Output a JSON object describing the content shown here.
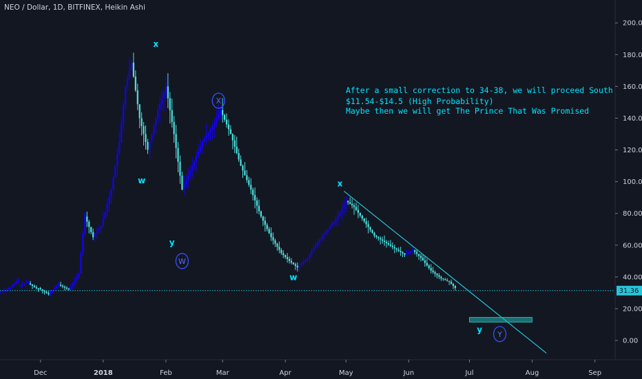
{
  "title": "NEO / Dollar, 1D, BITFINEX, Heikin Ashi",
  "last_price_badge": "31.36",
  "colors": {
    "background": "#131722",
    "bull": "#1400ff",
    "bear": "#4fe3e0",
    "trendline": "#26c6da",
    "text": "#d1d4dc",
    "annotation": "#00e5ff",
    "target_box": "#1fb8b2",
    "badge": "#26c6da"
  },
  "annotation_lines": [
    "After a small correction to 34-38, we will proceed South",
    "$11.54-$14.5 (High Probability)",
    "Maybe then we will get The Prince That Was Promised"
  ],
  "chart_data": {
    "type": "candlestick",
    "title": "NEO / Dollar, 1D, BITFINEX, Heikin Ashi",
    "y_axis": {
      "min": -10,
      "max": 204,
      "ticks": [
        0,
        20,
        40,
        60,
        80,
        100,
        120,
        140,
        160,
        180,
        200
      ],
      "tick_labels": [
        "0.00",
        "20.00",
        "40.00",
        "60.00",
        "80.00",
        "100.00",
        "120.00",
        "140.00",
        "160.00",
        "180.00",
        "200.00"
      ],
      "position": "right"
    },
    "x_axis": {
      "start": "2017-11-11",
      "end": "2018-09-11",
      "tick_dates": [
        "2017-12-01",
        "2018-01-01",
        "2018-02-01",
        "2018-03-01",
        "2018-04-01",
        "2018-05-01",
        "2018-06-01",
        "2018-07-01",
        "2018-08-01",
        "2018-09-01"
      ],
      "tick_labels": [
        "Dec",
        "2018",
        "Feb",
        "Mar",
        "Apr",
        "May",
        "Jun",
        "Jul",
        "Aug",
        "Sep"
      ]
    },
    "last_price": 31.36,
    "candles_approx": [
      [
        "2017-11-11",
        30,
        33
      ],
      [
        "2017-11-16",
        32,
        38
      ],
      [
        "2017-11-21",
        34,
        37
      ],
      [
        "2017-11-26",
        36,
        32
      ],
      [
        "2017-12-01",
        33,
        29
      ],
      [
        "2017-12-06",
        29,
        36
      ],
      [
        "2017-12-11",
        35,
        32
      ],
      [
        "2017-12-16",
        32,
        42
      ],
      [
        "2017-12-21",
        42,
        80
      ],
      [
        "2017-12-24",
        78,
        65
      ],
      [
        "2017-12-28",
        66,
        72
      ],
      [
        "2018-01-01",
        72,
        95
      ],
      [
        "2018-01-06",
        95,
        125
      ],
      [
        "2018-01-10",
        125,
        160
      ],
      [
        "2018-01-13",
        160,
        175
      ],
      [
        "2018-01-16",
        175,
        140
      ],
      [
        "2018-01-20",
        140,
        120
      ],
      [
        "2018-01-24",
        120,
        145
      ],
      [
        "2018-01-29",
        145,
        160
      ],
      [
        "2018-02-02",
        160,
        130
      ],
      [
        "2018-02-06",
        130,
        95
      ],
      [
        "2018-02-10",
        95,
        110
      ],
      [
        "2018-02-15",
        110,
        125
      ],
      [
        "2018-02-20",
        125,
        135
      ],
      [
        "2018-02-25",
        135,
        145
      ],
      [
        "2018-03-01",
        145,
        130
      ],
      [
        "2018-03-06",
        130,
        110
      ],
      [
        "2018-03-11",
        110,
        95
      ],
      [
        "2018-03-16",
        95,
        78
      ],
      [
        "2018-03-21",
        78,
        65
      ],
      [
        "2018-03-26",
        65,
        55
      ],
      [
        "2018-03-31",
        55,
        50
      ],
      [
        "2018-04-04",
        50,
        46
      ],
      [
        "2018-04-08",
        46,
        52
      ],
      [
        "2018-04-13",
        52,
        62
      ],
      [
        "2018-04-18",
        62,
        70
      ],
      [
        "2018-04-23",
        70,
        78
      ],
      [
        "2018-04-28",
        78,
        88
      ],
      [
        "2018-05-02",
        88,
        84
      ],
      [
        "2018-05-06",
        84,
        75
      ],
      [
        "2018-05-11",
        75,
        66
      ],
      [
        "2018-05-16",
        66,
        62
      ],
      [
        "2018-05-21",
        62,
        58
      ],
      [
        "2018-05-26",
        58,
        54
      ],
      [
        "2018-05-31",
        54,
        57
      ],
      [
        "2018-06-04",
        57,
        52
      ],
      [
        "2018-06-08",
        52,
        44
      ],
      [
        "2018-06-13",
        44,
        39
      ],
      [
        "2018-06-18",
        39,
        37
      ],
      [
        "2018-06-22",
        37,
        33
      ],
      [
        "2018-06-25",
        33,
        31.36
      ]
    ],
    "trendline": {
      "from": [
        "2018-04-30",
        94
      ],
      "to": [
        "2018-08-08",
        -8
      ]
    },
    "horizontal_line": {
      "value": 31.36,
      "style": "dotted"
    },
    "target_zone": {
      "from": "2018-07-01",
      "to": "2018-08-01",
      "low": 11.54,
      "high": 14.5
    },
    "wave_labels": [
      {
        "text": "x",
        "date": "2018-01-27",
        "value": 185,
        "circled": false
      },
      {
        "text": "w",
        "date": "2018-01-20",
        "value": 99,
        "circled": false
      },
      {
        "text": "y",
        "date": "2018-02-04",
        "value": 60,
        "circled": false
      },
      {
        "text": "W",
        "date": "2018-02-09",
        "value": 50,
        "circled": true
      },
      {
        "text": "X",
        "date": "2018-02-27",
        "value": 151,
        "circled": true
      },
      {
        "text": "w",
        "date": "2018-04-05",
        "value": 38,
        "circled": false
      },
      {
        "text": "x",
        "date": "2018-04-28",
        "value": 97,
        "circled": false
      },
      {
        "text": "y",
        "date": "2018-07-06",
        "value": 5,
        "circled": false
      },
      {
        "text": "Y",
        "date": "2018-07-16",
        "value": 4,
        "circled": true
      }
    ]
  }
}
